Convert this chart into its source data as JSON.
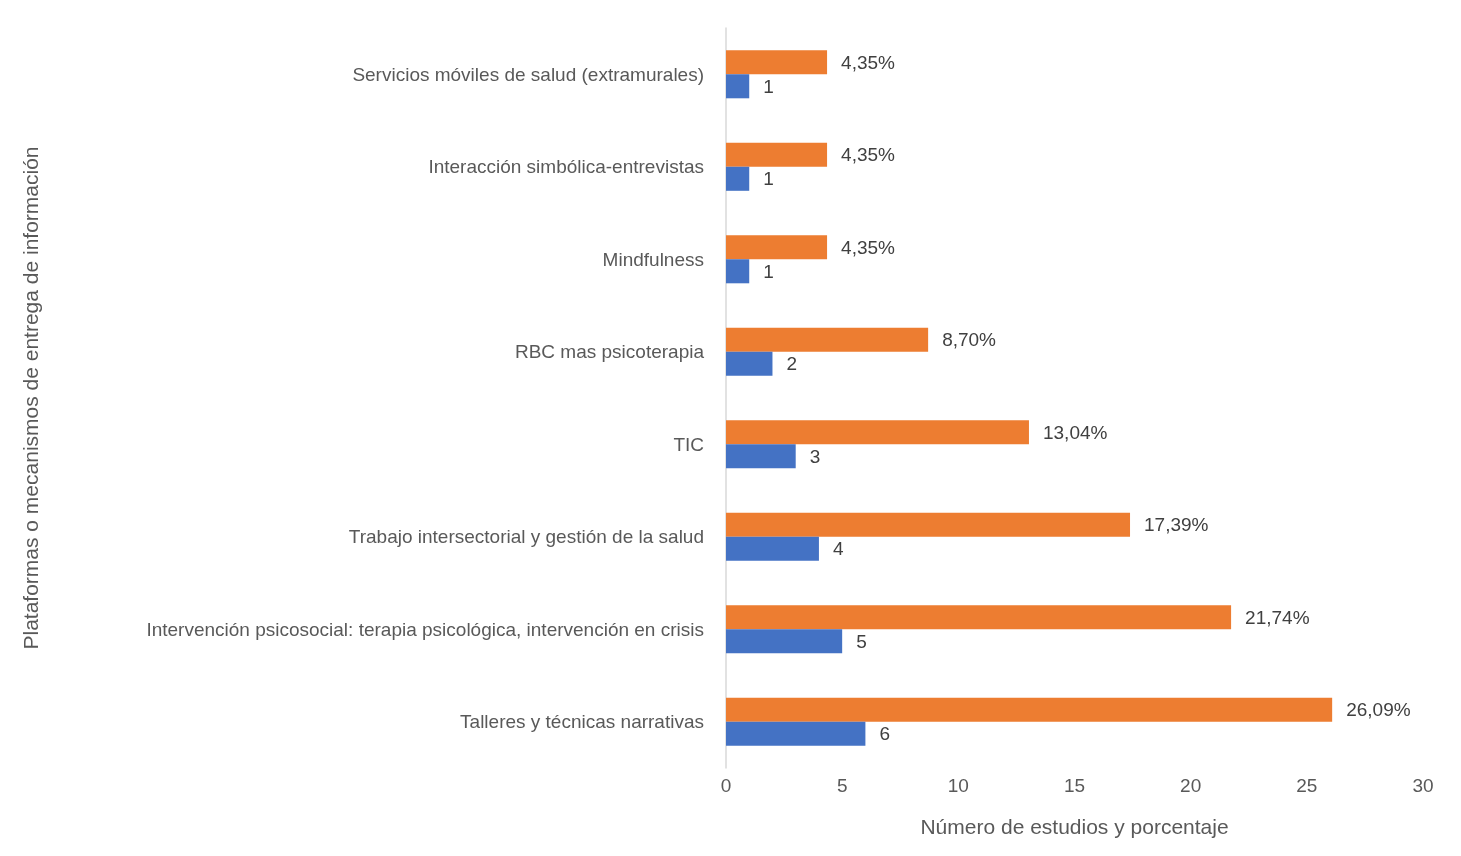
{
  "chart_data": {
    "type": "bar",
    "orientation": "horizontal",
    "xlabel": "Número de estudios y porcentaje",
    "ylabel": "Plataformas o mecanismos de entrega de información",
    "categories": [
      "Servicios móviles de salud (extramurales)",
      "Interacción simbólica-entrevistas",
      "Mindfulness",
      "RBC mas psicoterapia",
      "TIC",
      "Trabajo intersectorial y gestión de la salud",
      "Intervención psicosocial: terapia psicológica, intervención en crisis",
      "Talleres y técnicas narrativas"
    ],
    "series": [
      {
        "color": "#ed7d31",
        "values": [
          4.35,
          4.35,
          4.35,
          8.7,
          13.04,
          17.39,
          21.74,
          26.09
        ],
        "value_labels": [
          "4,35%",
          "4,35%",
          "4,35%",
          "8,70%",
          "13,04%",
          "17,39%",
          "21,74%",
          "26,09%"
        ]
      },
      {
        "color": "#4472c4",
        "values": [
          1,
          1,
          1,
          2,
          3,
          4,
          5,
          6
        ],
        "value_labels": [
          "1",
          "1",
          "1",
          "2",
          "3",
          "4",
          "5",
          "6"
        ]
      }
    ],
    "xlim": [
      0,
      30
    ],
    "xticks": [
      0,
      5,
      10,
      15,
      20,
      25,
      30
    ],
    "grid": false
  }
}
